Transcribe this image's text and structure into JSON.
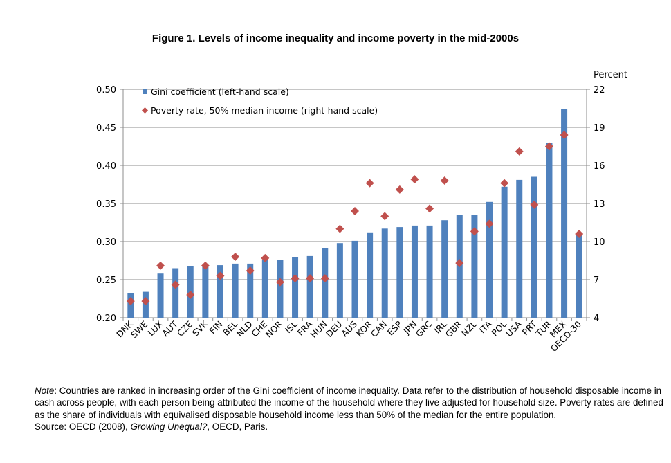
{
  "chart_data": {
    "type": "bar",
    "title": "Figure 1.  Levels of income inequality and income poverty in the mid-2000s",
    "categories": [
      "DNK",
      "SWE",
      "LUX",
      "AUT",
      "CZE",
      "SVK",
      "FIN",
      "BEL",
      "NLD",
      "CHE",
      "NOR",
      "ISL",
      "FRA",
      "HUN",
      "DEU",
      "AUS",
      "KOR",
      "CAN",
      "ESP",
      "JPN",
      "GRC",
      "IRL",
      "GBR",
      "NZL",
      "ITA",
      "POL",
      "USA",
      "PRT",
      "TUR",
      "MEX",
      "OECD-30"
    ],
    "series": [
      {
        "name": "Gini coefficient (left-hand scale)",
        "type": "bar",
        "axis": "left",
        "color": "#4f81bd",
        "values": [
          0.232,
          0.234,
          0.258,
          0.265,
          0.268,
          0.268,
          0.269,
          0.271,
          0.271,
          0.276,
          0.276,
          0.28,
          0.281,
          0.291,
          0.298,
          0.301,
          0.312,
          0.317,
          0.319,
          0.321,
          0.321,
          0.328,
          0.335,
          0.335,
          0.352,
          0.372,
          0.381,
          0.385,
          0.43,
          0.474,
          0.311
        ]
      },
      {
        "name": "Poverty rate, 50% median income (right-hand scale)",
        "type": "scatter",
        "marker": "diamond",
        "axis": "right",
        "color": "#c0504d",
        "values": [
          5.3,
          5.3,
          8.1,
          6.6,
          5.8,
          8.1,
          7.3,
          8.8,
          7.7,
          8.7,
          6.8,
          7.1,
          7.1,
          7.1,
          11.0,
          12.4,
          14.6,
          12.0,
          14.1,
          14.9,
          12.6,
          14.8,
          8.3,
          10.8,
          11.4,
          14.6,
          17.1,
          12.9,
          17.5,
          18.4,
          10.6
        ]
      }
    ],
    "y_left": {
      "range": [
        0.2,
        0.5
      ],
      "ticks": [
        "0.20",
        "0.25",
        "0.30",
        "0.35",
        "0.40",
        "0.45",
        "0.50"
      ]
    },
    "y_right": {
      "label": "Percent",
      "range": [
        4,
        22
      ],
      "ticks": [
        "4",
        "7",
        "10",
        "13",
        "16",
        "19",
        "22"
      ]
    },
    "grid": true,
    "legend": "top-left"
  },
  "note": {
    "label": "Note",
    "text": ": Countries are ranked in increasing order of the Gini coefficient of income inequality. Data refer to the distribution of household disposable income in cash across people, with each person being attributed the income of the household where they live adjusted for household size. Poverty rates are defined as the share of individuals with equivalised disposable household income less than 50% of the median for the entire population.",
    "source_prefix": "Source: OECD (2008), ",
    "source_title": "Growing Unequal?",
    "source_suffix": ", OECD, Paris."
  }
}
